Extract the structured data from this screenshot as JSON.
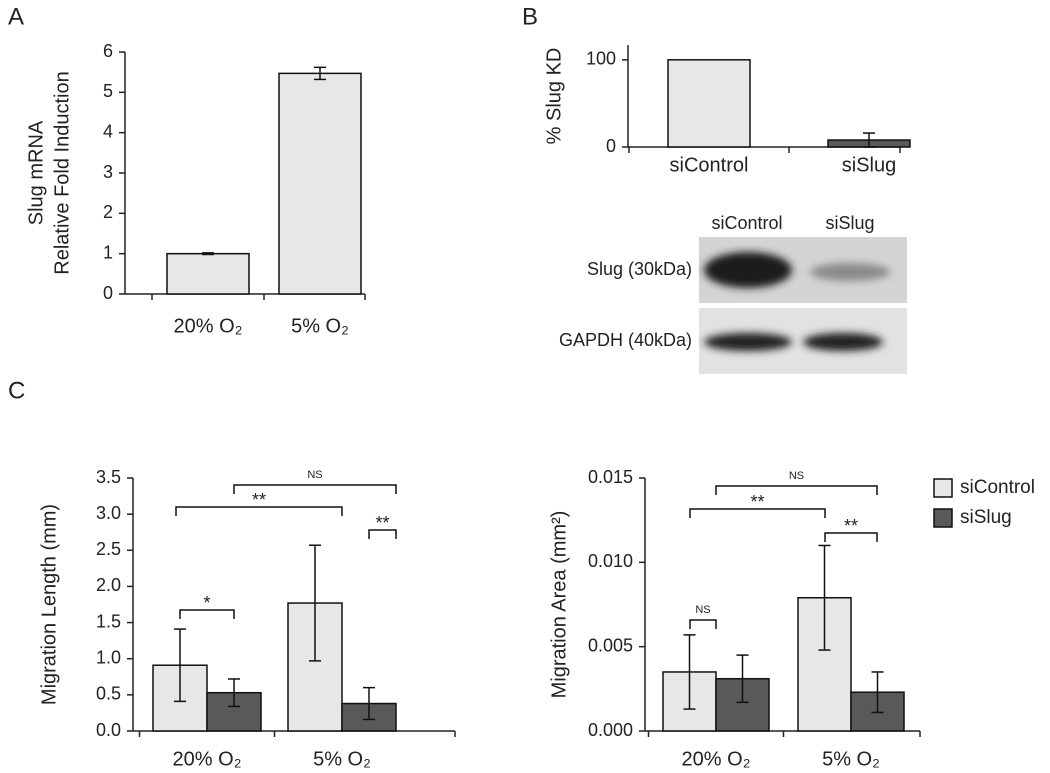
{
  "panel_labels": [
    "A",
    "B",
    "C"
  ],
  "blot": {
    "lanes": [
      "siControl",
      "siSlug"
    ],
    "rows": [
      "Slug (30kDa)",
      "GAPDH (40kDa)"
    ]
  },
  "chart_data": [
    {
      "type": "bar",
      "ylabel": [
        "Slug mRNA",
        "Relative Fold Induction"
      ],
      "categories": [
        "20% O₂",
        "5% O₂"
      ],
      "series": [
        {
          "name": null,
          "color": "#e6e7e6",
          "values": [
            1.0,
            5.47
          ],
          "errors": [
            0.02,
            0.15
          ]
        }
      ],
      "ylim": [
        0,
        6
      ],
      "yticks": [
        0,
        1,
        2,
        3,
        4,
        5,
        6
      ]
    },
    {
      "type": "bar",
      "ylabel": [
        "% Slug KD"
      ],
      "categories": [
        "siControl",
        "siSlug"
      ],
      "series": [
        {
          "name": null,
          "colors": [
            "#e6e7e6",
            "#595959"
          ],
          "values": [
            100,
            8
          ],
          "errors": [
            0,
            8
          ]
        }
      ],
      "ylim": [
        0,
        117
      ],
      "yticks": [
        0,
        100
      ]
    },
    {
      "type": "grouped-bar",
      "ylabel": [
        "Migration Length (mm)"
      ],
      "categories": [
        "20% O₂",
        "5% O₂"
      ],
      "series": [
        {
          "name": "siControl",
          "color": "#e6e7e6",
          "values": [
            0.91,
            1.77
          ],
          "errors": [
            0.5,
            0.8
          ]
        },
        {
          "name": "siSlug",
          "color": "#595959",
          "values": [
            0.53,
            0.38
          ],
          "errors": [
            0.19,
            0.22
          ]
        }
      ],
      "ylim": [
        0,
        3.5
      ],
      "yticks": [
        {
          "value": 0,
          "label": "0.0"
        },
        {
          "value": 0.5,
          "label": "0.5"
        },
        {
          "value": 1,
          "label": "1.0"
        },
        {
          "value": 1.5,
          "label": "1.5"
        },
        {
          "value": 2,
          "label": "2.0"
        },
        {
          "value": 2.5,
          "label": "2.5"
        },
        {
          "value": 3,
          "label": "3.0"
        },
        {
          "value": 3.5,
          "label": "3.5"
        }
      ],
      "annotations": [
        "*",
        "**",
        "**",
        "NS"
      ]
    },
    {
      "type": "grouped-bar",
      "ylabel": [
        "Migration Area (mm²)"
      ],
      "categories": [
        "20% O₂",
        "5% O₂"
      ],
      "series": [
        {
          "name": "siControl",
          "color": "#e6e7e6",
          "values": [
            0.0035,
            0.0079
          ],
          "errors": [
            0.0022,
            0.0031
          ]
        },
        {
          "name": "siSlug",
          "color": "#595959",
          "values": [
            0.0031,
            0.0023
          ],
          "errors": [
            0.0014,
            0.0012
          ]
        }
      ],
      "ylim": [
        0,
        0.015
      ],
      "yticks": [
        {
          "value": 0,
          "label": "0.000"
        },
        {
          "value": 0.005,
          "label": "0.005"
        },
        {
          "value": 0.01,
          "label": "0.010"
        },
        {
          "value": 0.015,
          "label": "0.015"
        }
      ],
      "annotations": [
        "NS",
        "**",
        "**",
        "NS"
      ],
      "legend": "right"
    }
  ]
}
